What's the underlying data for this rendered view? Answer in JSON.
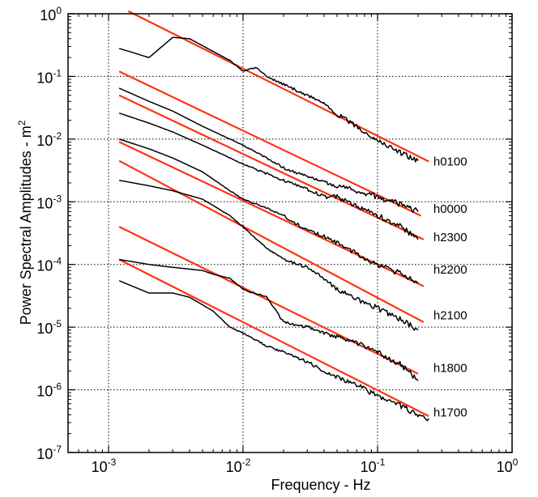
{
  "chart_data": {
    "type": "line",
    "title": "",
    "xlabel": "Frequency - Hz",
    "ylabel_text": "Power Spectral Amplitudes - m",
    "ylabel_superscript": "2",
    "x_scale": "log",
    "y_scale": "log",
    "xlim": [
      0.0005,
      1
    ],
    "ylim": [
      1e-07,
      1
    ],
    "grid": true,
    "x_ticks": [
      {
        "value": 0.001,
        "base": "10",
        "exp": "-3"
      },
      {
        "value": 0.01,
        "base": "10",
        "exp": "-2"
      },
      {
        "value": 0.1,
        "base": "10",
        "exp": "-1"
      },
      {
        "value": 1,
        "base": "10",
        "exp": "0"
      }
    ],
    "y_ticks": [
      {
        "value": 1,
        "base": "10",
        "exp": "0"
      },
      {
        "value": 0.1,
        "base": "10",
        "exp": "-1"
      },
      {
        "value": 0.01,
        "base": "10",
        "exp": "-2"
      },
      {
        "value": 0.001,
        "base": "10",
        "exp": "-3"
      },
      {
        "value": 0.0001,
        "base": "10",
        "exp": "-4"
      },
      {
        "value": 1e-05,
        "base": "10",
        "exp": "-5"
      },
      {
        "value": 1e-06,
        "base": "10",
        "exp": "-6"
      },
      {
        "value": 1e-07,
        "base": "10",
        "exp": "-7"
      }
    ],
    "colors": {
      "spectrum": "#000000",
      "fit": "#ff3311",
      "grid": "#000000"
    },
    "series": [
      {
        "name": "h0100",
        "spectrum": [
          [
            0.0012,
            0.28
          ],
          [
            0.002,
            0.2
          ],
          [
            0.003,
            0.42
          ],
          [
            0.004,
            0.4
          ],
          [
            0.006,
            0.25
          ],
          [
            0.008,
            0.18
          ],
          [
            0.01,
            0.12
          ],
          [
            0.0125,
            0.14
          ],
          [
            0.015,
            0.1
          ],
          [
            0.02,
            0.075
          ],
          [
            0.03,
            0.05
          ],
          [
            0.04,
            0.038
          ],
          [
            0.05,
            0.025
          ],
          [
            0.07,
            0.016
          ],
          [
            0.1,
            0.0095
          ],
          [
            0.15,
            0.006
          ],
          [
            0.2,
            0.0045
          ]
        ],
        "fit": [
          [
            0.0014,
            1.1
          ],
          [
            0.24,
            0.0044
          ]
        ],
        "label_pos": [
          0.26,
          0.0045
        ]
      },
      {
        "name": "h0000",
        "spectrum": [
          [
            0.0012,
            0.065
          ],
          [
            0.002,
            0.04
          ],
          [
            0.003,
            0.028
          ],
          [
            0.005,
            0.016
          ],
          [
            0.008,
            0.01
          ],
          [
            0.01,
            0.008
          ],
          [
            0.015,
            0.005
          ],
          [
            0.02,
            0.0035
          ],
          [
            0.03,
            0.0025
          ],
          [
            0.04,
            0.0021
          ],
          [
            0.05,
            0.0018
          ],
          [
            0.07,
            0.0015
          ],
          [
            0.1,
            0.0012
          ],
          [
            0.15,
            0.0009
          ],
          [
            0.2,
            0.0007
          ]
        ],
        "fit": [
          [
            0.0012,
            0.12
          ],
          [
            0.21,
            0.0006
          ]
        ],
        "label_pos": [
          0.26,
          0.0008
        ]
      },
      {
        "name": "h2300",
        "spectrum": [
          [
            0.0012,
            0.026
          ],
          [
            0.002,
            0.018
          ],
          [
            0.003,
            0.013
          ],
          [
            0.005,
            0.008
          ],
          [
            0.008,
            0.005
          ],
          [
            0.01,
            0.004
          ],
          [
            0.015,
            0.0028
          ],
          [
            0.02,
            0.0022
          ],
          [
            0.03,
            0.0016
          ],
          [
            0.04,
            0.0012
          ],
          [
            0.05,
            0.0012
          ],
          [
            0.07,
            0.00085
          ],
          [
            0.1,
            0.0006
          ],
          [
            0.15,
            0.0004
          ],
          [
            0.2,
            0.00025
          ]
        ],
        "fit": [
          [
            0.0012,
            0.05
          ],
          [
            0.22,
            0.00025
          ]
        ],
        "label_pos": [
          0.26,
          0.00028
        ]
      },
      {
        "name": "h2200",
        "spectrum": [
          [
            0.0012,
            0.01
          ],
          [
            0.002,
            0.007
          ],
          [
            0.003,
            0.005
          ],
          [
            0.005,
            0.003
          ],
          [
            0.008,
            0.0015
          ],
          [
            0.01,
            0.0011
          ],
          [
            0.015,
            0.0008
          ],
          [
            0.02,
            0.0006
          ],
          [
            0.03,
            0.00035
          ],
          [
            0.04,
            0.00028
          ],
          [
            0.05,
            0.00022
          ],
          [
            0.07,
            0.00015
          ],
          [
            0.1,
            0.0001
          ],
          [
            0.15,
            7e-05
          ],
          [
            0.2,
            5e-05
          ]
        ],
        "fit": [
          [
            0.0012,
            0.009
          ],
          [
            0.22,
            4.5e-05
          ]
        ],
        "label_pos": [
          0.26,
          8.5e-05
        ]
      },
      {
        "name": "h2100",
        "spectrum": [
          [
            0.0012,
            0.0022
          ],
          [
            0.002,
            0.0018
          ],
          [
            0.003,
            0.0015
          ],
          [
            0.005,
            0.0011
          ],
          [
            0.008,
            0.0006
          ],
          [
            0.01,
            0.0004
          ],
          [
            0.015,
            0.00018
          ],
          [
            0.02,
            0.00012
          ],
          [
            0.03,
            9e-05
          ],
          [
            0.04,
            6e-05
          ],
          [
            0.05,
            4e-05
          ],
          [
            0.07,
            2.8e-05
          ],
          [
            0.1,
            2e-05
          ],
          [
            0.15,
            1.3e-05
          ],
          [
            0.2,
            9e-06
          ]
        ],
        "fit": [
          [
            0.0012,
            0.0045
          ],
          [
            0.22,
            1.2e-05
          ]
        ],
        "label_pos": [
          0.26,
          1.6e-05
        ]
      },
      {
        "name": "h1800",
        "spectrum": [
          [
            0.0012,
            0.00012
          ],
          [
            0.002,
            0.0001
          ],
          [
            0.003,
            9e-05
          ],
          [
            0.005,
            8e-05
          ],
          [
            0.006,
            7e-05
          ],
          [
            0.008,
            6e-05
          ],
          [
            0.01,
            4e-05
          ],
          [
            0.015,
            3e-05
          ],
          [
            0.02,
            1.2e-05
          ],
          [
            0.03,
            1e-05
          ],
          [
            0.04,
            8e-06
          ],
          [
            0.05,
            7e-06
          ],
          [
            0.07,
            5.5e-06
          ],
          [
            0.1,
            4e-06
          ],
          [
            0.15,
            2.5e-06
          ],
          [
            0.2,
            1.4e-06
          ]
        ],
        "fit": [
          [
            0.0012,
            0.0004
          ],
          [
            0.2,
            1.8e-06
          ]
        ],
        "label_pos": [
          0.26,
          2.3e-06
        ]
      },
      {
        "name": "h1700",
        "spectrum": [
          [
            0.0012,
            5.5e-05
          ],
          [
            0.002,
            3.5e-05
          ],
          [
            0.003,
            3.5e-05
          ],
          [
            0.004,
            3e-05
          ],
          [
            0.006,
            1.8e-05
          ],
          [
            0.008,
            1e-05
          ],
          [
            0.01,
            8e-06
          ],
          [
            0.015,
            5e-06
          ],
          [
            0.02,
            4e-06
          ],
          [
            0.03,
            2.8e-06
          ],
          [
            0.04,
            2e-06
          ],
          [
            0.05,
            1.6e-06
          ],
          [
            0.07,
            1.2e-06
          ],
          [
            0.1,
            8e-07
          ],
          [
            0.15,
            5.5e-07
          ],
          [
            0.2,
            4e-07
          ],
          [
            0.24,
            3.5e-07
          ]
        ],
        "fit": [
          [
            0.0012,
            0.00012
          ],
          [
            0.24,
            3.8e-07
          ]
        ],
        "label_pos": [
          0.26,
          4.5e-07
        ]
      }
    ]
  }
}
